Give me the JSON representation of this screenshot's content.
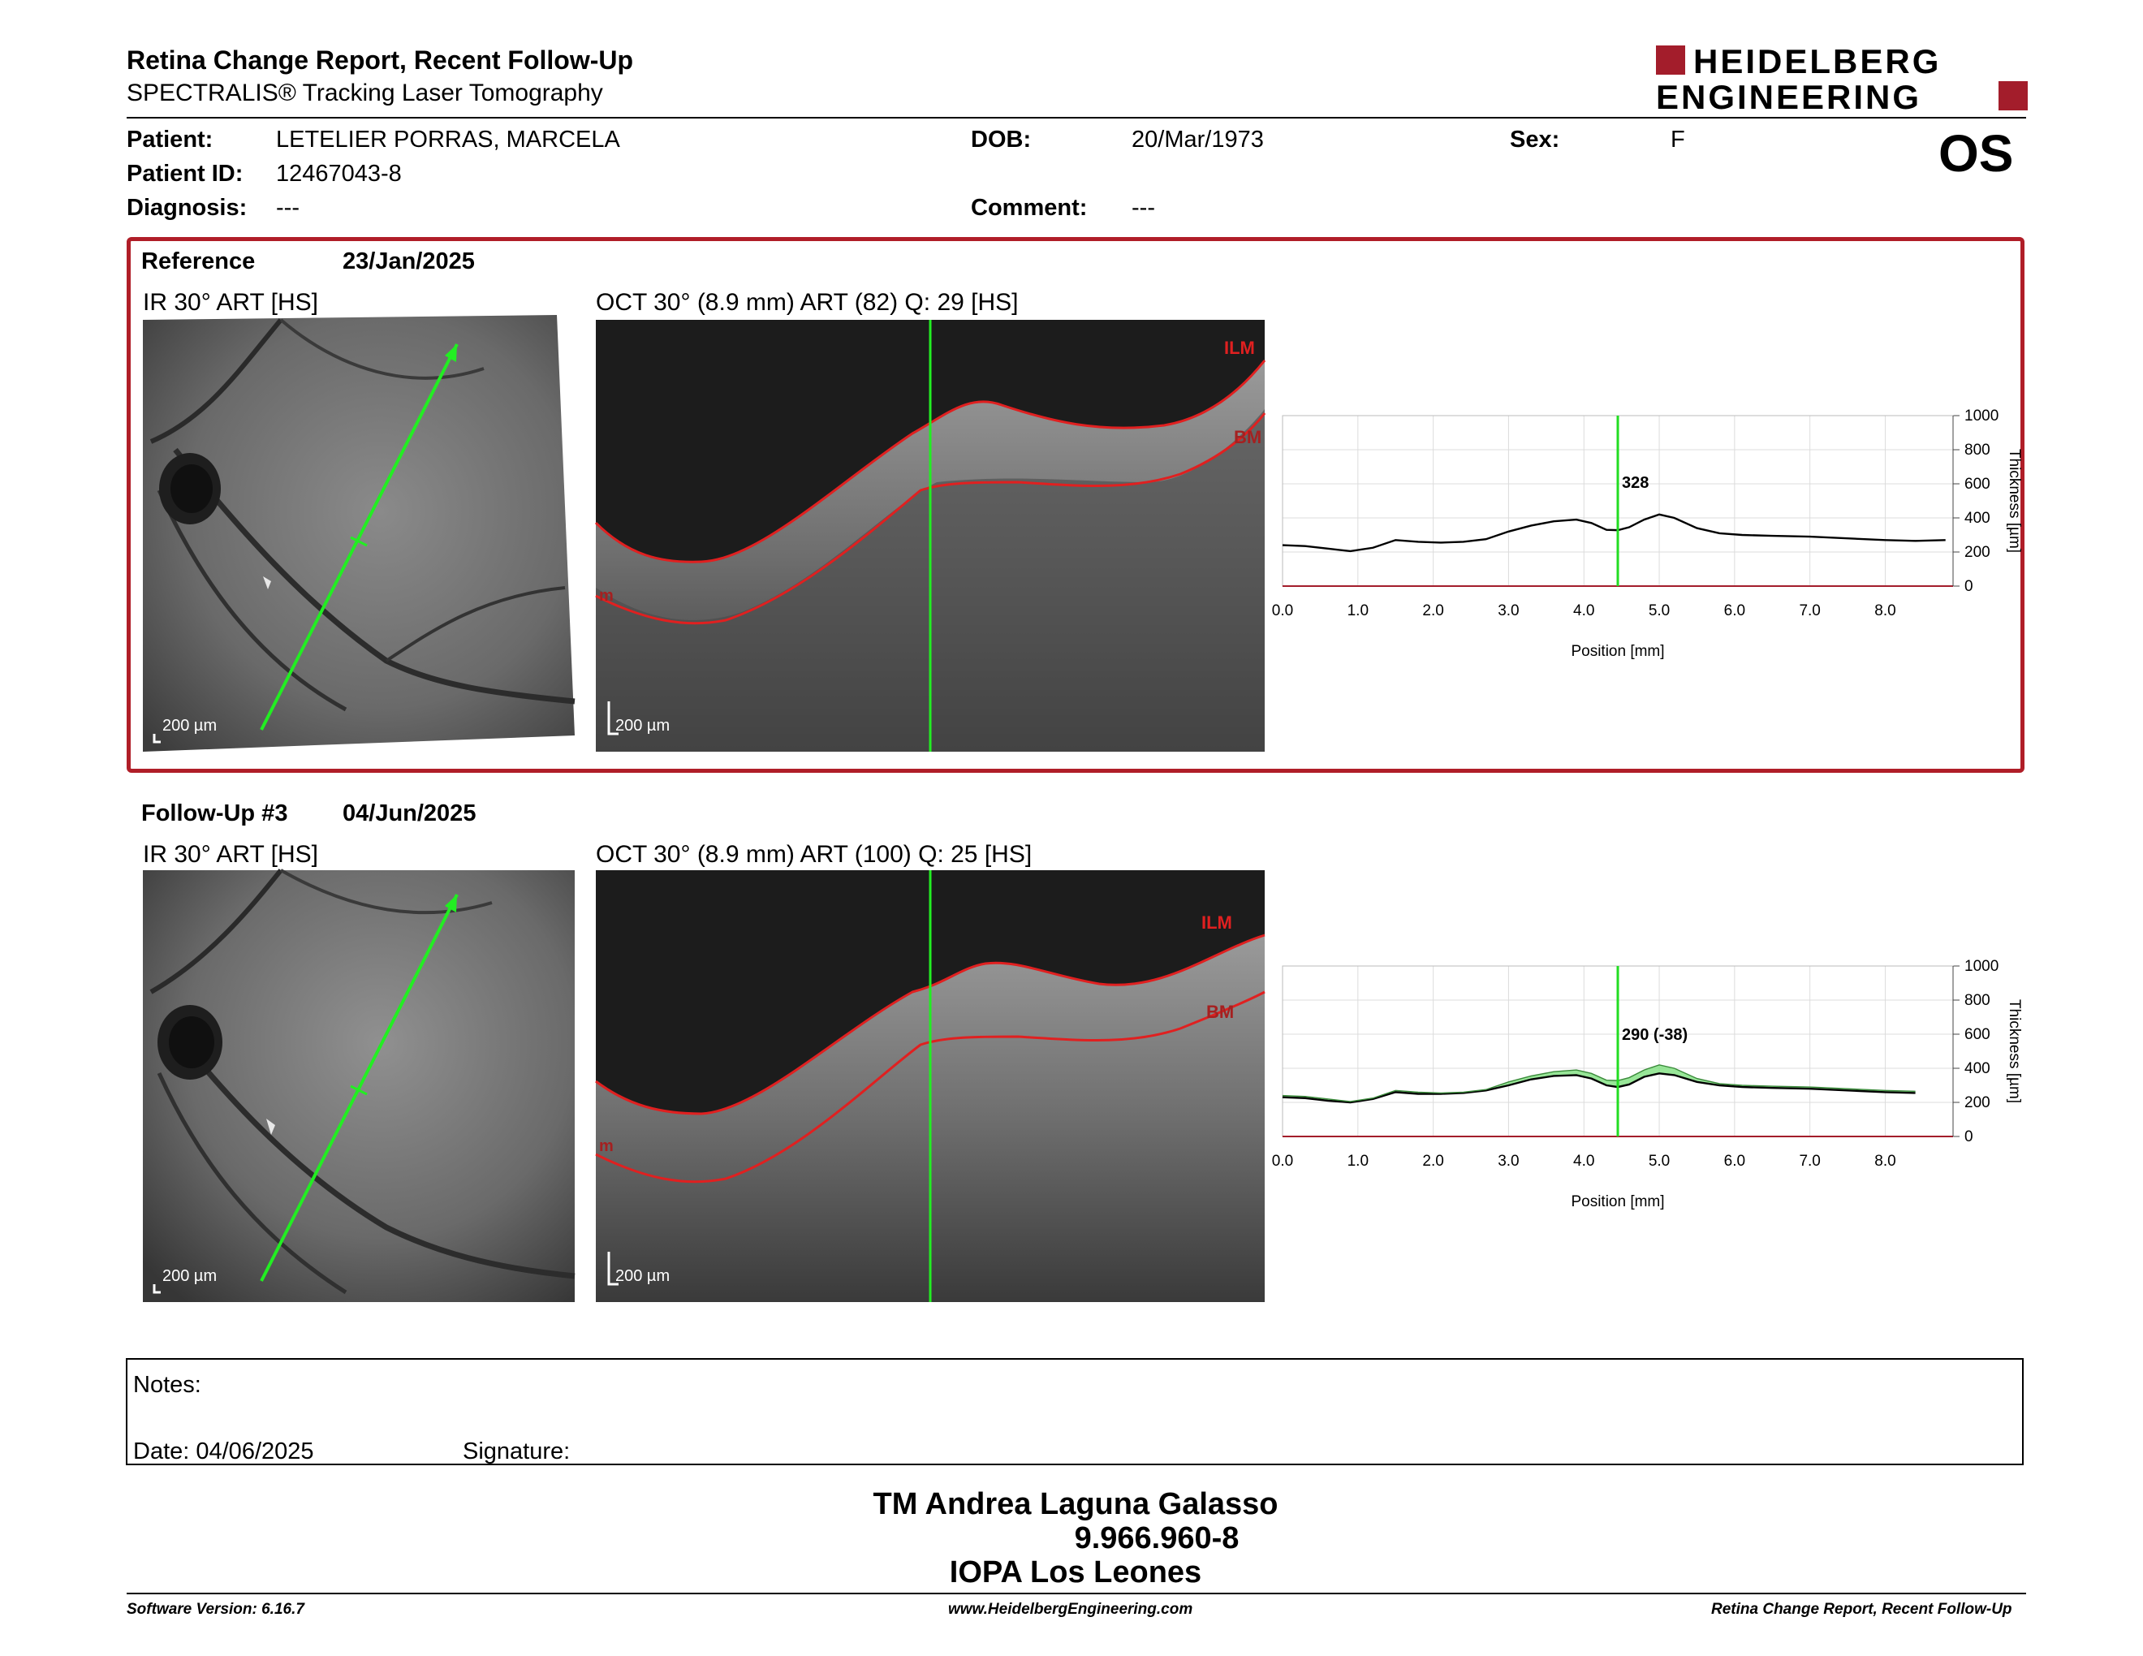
{
  "header": {
    "title": "Retina Change Report, Recent Follow-Up",
    "subtitle": "SPECTRALIS® Tracking Laser Tomography",
    "logo_line1": "HEIDELBERG",
    "logo_line2": "ENGINEERING",
    "brand_color": "#a31d2b"
  },
  "patient": {
    "patient_label": "Patient:",
    "patient_value": "LETELIER PORRAS, MARCELA",
    "id_label": "Patient ID:",
    "id_value": "12467043-8",
    "diagnosis_label": "Diagnosis:",
    "diagnosis_value": "---",
    "dob_label": "DOB:",
    "dob_value": "20/Mar/1973",
    "comment_label": "Comment:",
    "comment_value": "---",
    "sex_label": "Sex:",
    "sex_value": "F",
    "eye": "OS"
  },
  "reference": {
    "label": "Reference",
    "date": "23/Jan/2025",
    "ir_label": "IR 30° ART [HS]",
    "oct_label": "OCT 30° (8.9 mm) ART (82) Q: 29 [HS]",
    "scale_ir": "200 µm",
    "scale_oct": "200 µm",
    "ilm": "ILM",
    "bm": "BM",
    "m": "m",
    "cursor_value": "328"
  },
  "followup": {
    "label": "Follow-Up #3",
    "date": "04/Jun/2025",
    "ir_label": "IR 30° ART [HS]",
    "oct_label": "OCT 30° (8.9 mm) ART (100) Q: 25 [HS]",
    "scale_ir": "200 µm",
    "scale_oct": "200 µm",
    "ilm": "ILM",
    "bm": "BM",
    "m": "m",
    "cursor_value": "290 (-38)"
  },
  "chart_data": [
    {
      "type": "line",
      "title": "",
      "xlabel": "Position [mm]",
      "ylabel": "Thickness [µm]",
      "xlim": [
        0,
        8.9
      ],
      "ylim": [
        0,
        1000
      ],
      "xticks": [
        "0.0",
        "1.0",
        "2.0",
        "3.0",
        "4.0",
        "5.0",
        "6.0",
        "7.0",
        "8.0"
      ],
      "yticks": [
        "0",
        "200",
        "400",
        "600",
        "800",
        "1000"
      ],
      "cursor_x": 4.45,
      "series": [
        {
          "x": [
            0,
            0.3,
            0.6,
            0.9,
            1.2,
            1.5,
            1.8,
            2.1,
            2.4,
            2.7,
            3.0,
            3.3,
            3.6,
            3.9,
            4.1,
            4.3,
            4.45,
            4.6,
            4.8,
            5.0,
            5.2,
            5.5,
            5.8,
            6.1,
            6.5,
            7.0,
            7.5,
            8.0,
            8.4,
            8.8
          ],
          "y": [
            240,
            235,
            220,
            205,
            225,
            270,
            260,
            255,
            260,
            275,
            320,
            355,
            380,
            390,
            370,
            330,
            328,
            345,
            390,
            420,
            400,
            340,
            310,
            300,
            295,
            290,
            280,
            270,
            265,
            270
          ]
        }
      ]
    },
    {
      "type": "line",
      "title": "",
      "xlabel": "Position [mm]",
      "ylabel": "Thickness [µm]",
      "xlim": [
        0,
        8.9
      ],
      "ylim": [
        0,
        1000
      ],
      "xticks": [
        "0.0",
        "1.0",
        "2.0",
        "3.0",
        "4.0",
        "5.0",
        "6.0",
        "7.0",
        "8.0"
      ],
      "yticks": [
        "0",
        "200",
        "400",
        "600",
        "800",
        "1000"
      ],
      "cursor_x": 4.45,
      "series": [
        {
          "x": [
            0,
            0.3,
            0.6,
            0.9,
            1.2,
            1.5,
            1.8,
            2.1,
            2.4,
            2.7,
            3.0,
            3.3,
            3.6,
            3.9,
            4.1,
            4.3,
            4.45,
            4.6,
            4.8,
            5.0,
            5.2,
            5.5,
            5.8,
            6.1,
            6.5,
            7.0,
            7.5,
            8.0,
            8.4
          ],
          "y": [
            230,
            225,
            210,
            200,
            220,
            260,
            250,
            250,
            255,
            270,
            300,
            335,
            355,
            360,
            340,
            300,
            290,
            305,
            350,
            370,
            360,
            320,
            300,
            290,
            285,
            280,
            270,
            260,
            255
          ]
        },
        {
          "x": [
            0,
            0.3,
            0.6,
            0.9,
            1.2,
            1.5,
            1.8,
            2.1,
            2.4,
            2.7,
            3.0,
            3.3,
            3.6,
            3.9,
            4.1,
            4.3,
            4.45,
            4.6,
            4.8,
            5.0,
            5.2,
            5.5,
            5.8,
            6.1,
            6.5,
            7.0,
            7.5,
            8.0,
            8.4
          ],
          "y": [
            240,
            235,
            220,
            205,
            225,
            270,
            260,
            255,
            260,
            275,
            320,
            355,
            380,
            390,
            370,
            330,
            328,
            345,
            390,
            420,
            400,
            340,
            310,
            300,
            295,
            290,
            280,
            270,
            265
          ]
        }
      ]
    }
  ],
  "notes": {
    "notes_label": "Notes:",
    "date_label": "Date: 04/06/2025",
    "signature_label": "Signature:"
  },
  "signature": {
    "name": "TM Andrea Laguna Galasso",
    "id": "9.966.960-8",
    "org": "IOPA Los Leones"
  },
  "footer": {
    "version": "Software Version: 6.16.7",
    "url": "www.HeidelbergEngineering.com",
    "report": "Retina Change Report, Recent Follow-Up"
  }
}
